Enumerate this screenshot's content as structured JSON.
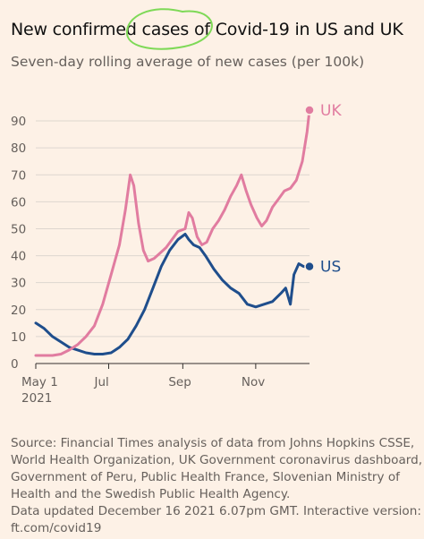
{
  "header": {
    "title": "New confirmed cases of Covid-19 in US and UK",
    "subtitle": "Seven-day rolling average of new cases (per 100k)"
  },
  "footer": {
    "lines": [
      "Source: Financial Times analysis of data from Johns Hopkins CSSE,",
      "World Health Organization, UK Government coronavirus dashboard,",
      "Government of Peru, Public Health France, Slovenian Ministry of",
      "Health and the Swedish Public Health Agency.",
      "Data updated December 16 2021 6.07pm GMT. Interactive version:",
      "ft.com/covid19"
    ]
  },
  "colors": {
    "background": "#fdf1e6",
    "uk": "#e17ca0",
    "us": "#1f4e8c",
    "grid": "#ddd6cf",
    "annotation": "#7ed957"
  },
  "chart_data": {
    "type": "line",
    "title": "New confirmed cases of Covid-19 in US and UK",
    "subtitle": "Seven-day rolling average of new cases (per 100k)",
    "xlabel": "",
    "ylabel": "",
    "x_range": [
      "2021-05-01",
      "2021-12-16"
    ],
    "ylim": [
      0,
      95
    ],
    "y_ticks": [
      0,
      10,
      20,
      30,
      40,
      50,
      60,
      70,
      80,
      90
    ],
    "x_ticks": [
      {
        "date": "2021-05-01",
        "label": "May 1",
        "sublabel": "2021"
      },
      {
        "date": "2021-07-01",
        "label": "Jul",
        "sublabel": ""
      },
      {
        "date": "2021-09-01",
        "label": "Sep",
        "sublabel": ""
      },
      {
        "date": "2021-11-01",
        "label": "Nov",
        "sublabel": ""
      }
    ],
    "grid": true,
    "series": [
      {
        "name": "UK",
        "color": "#e17ca0",
        "points": [
          [
            "2021-05-01",
            3
          ],
          [
            "2021-05-08",
            3
          ],
          [
            "2021-05-15",
            3
          ],
          [
            "2021-05-22",
            3.5
          ],
          [
            "2021-05-29",
            5
          ],
          [
            "2021-06-05",
            7
          ],
          [
            "2021-06-12",
            10
          ],
          [
            "2021-06-19",
            14
          ],
          [
            "2021-06-26",
            22
          ],
          [
            "2021-07-03",
            33
          ],
          [
            "2021-07-10",
            44
          ],
          [
            "2021-07-15",
            57
          ],
          [
            "2021-07-19",
            70
          ],
          [
            "2021-07-22",
            66
          ],
          [
            "2021-07-26",
            52
          ],
          [
            "2021-07-30",
            42
          ],
          [
            "2021-08-03",
            38
          ],
          [
            "2021-08-08",
            39
          ],
          [
            "2021-08-13",
            41
          ],
          [
            "2021-08-18",
            43
          ],
          [
            "2021-08-23",
            46
          ],
          [
            "2021-08-28",
            49
          ],
          [
            "2021-09-03",
            50
          ],
          [
            "2021-09-06",
            56
          ],
          [
            "2021-09-09",
            54
          ],
          [
            "2021-09-13",
            47
          ],
          [
            "2021-09-17",
            44
          ],
          [
            "2021-09-21",
            45
          ],
          [
            "2021-09-26",
            50
          ],
          [
            "2021-10-01",
            53
          ],
          [
            "2021-10-06",
            57
          ],
          [
            "2021-10-11",
            62
          ],
          [
            "2021-10-16",
            66
          ],
          [
            "2021-10-20",
            70
          ],
          [
            "2021-10-24",
            64
          ],
          [
            "2021-10-28",
            59
          ],
          [
            "2021-11-02",
            54
          ],
          [
            "2021-11-06",
            51
          ],
          [
            "2021-11-10",
            53
          ],
          [
            "2021-11-15",
            58
          ],
          [
            "2021-11-20",
            61
          ],
          [
            "2021-11-25",
            64
          ],
          [
            "2021-11-30",
            65
          ],
          [
            "2021-12-05",
            68
          ],
          [
            "2021-12-10",
            75
          ],
          [
            "2021-12-14",
            86
          ],
          [
            "2021-12-16",
            94
          ]
        ]
      },
      {
        "name": "US",
        "color": "#1f4e8c",
        "points": [
          [
            "2021-05-01",
            15
          ],
          [
            "2021-05-08",
            13
          ],
          [
            "2021-05-15",
            10
          ],
          [
            "2021-05-22",
            8
          ],
          [
            "2021-05-29",
            6
          ],
          [
            "2021-06-05",
            5
          ],
          [
            "2021-06-12",
            4
          ],
          [
            "2021-06-19",
            3.5
          ],
          [
            "2021-06-26",
            3.5
          ],
          [
            "2021-07-03",
            4
          ],
          [
            "2021-07-10",
            6
          ],
          [
            "2021-07-17",
            9
          ],
          [
            "2021-07-24",
            14
          ],
          [
            "2021-07-31",
            20
          ],
          [
            "2021-08-07",
            28
          ],
          [
            "2021-08-14",
            36
          ],
          [
            "2021-08-21",
            42
          ],
          [
            "2021-08-28",
            46
          ],
          [
            "2021-09-03",
            48
          ],
          [
            "2021-09-06",
            46
          ],
          [
            "2021-09-10",
            44
          ],
          [
            "2021-09-15",
            43
          ],
          [
            "2021-09-20",
            40
          ],
          [
            "2021-09-27",
            35
          ],
          [
            "2021-10-04",
            31
          ],
          [
            "2021-10-11",
            28
          ],
          [
            "2021-10-18",
            26
          ],
          [
            "2021-10-25",
            22
          ],
          [
            "2021-11-01",
            21
          ],
          [
            "2021-11-08",
            22
          ],
          [
            "2021-11-15",
            23
          ],
          [
            "2021-11-22",
            26
          ],
          [
            "2021-11-26",
            28
          ],
          [
            "2021-11-30",
            22
          ],
          [
            "2021-12-03",
            33
          ],
          [
            "2021-12-07",
            37
          ],
          [
            "2021-12-11",
            36
          ],
          [
            "2021-12-16",
            36
          ]
        ]
      }
    ]
  }
}
